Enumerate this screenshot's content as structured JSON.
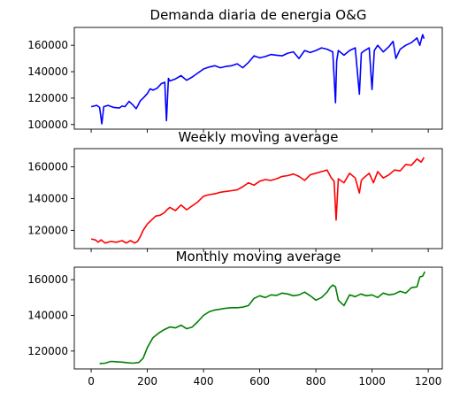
{
  "chart_data": [
    {
      "type": "line",
      "title": "Demanda diaria de energia O&G",
      "color": "#0000ff",
      "xlim": [
        -60,
        1250
      ],
      "ylim": [
        96500,
        173500
      ],
      "x_ticks": [
        0,
        200,
        400,
        600,
        800,
        1000,
        1200
      ],
      "x_tick_labels_visible": false,
      "y_ticks": [
        100000,
        120000,
        140000,
        160000
      ],
      "y_tick_labels": [
        "100000",
        "120000",
        "140000",
        "160000"
      ],
      "series": [
        {
          "x": [
            0,
            20,
            30,
            38,
            45,
            60,
            80,
            100,
            110,
            120,
            135,
            150,
            160,
            168,
            175,
            185,
            200,
            210,
            220,
            235,
            250,
            262,
            268,
            275,
            280,
            300,
            320,
            340,
            360,
            380,
            400,
            420,
            440,
            460,
            480,
            500,
            520,
            540,
            560,
            580,
            600,
            620,
            640,
            660,
            680,
            700,
            720,
            740,
            760,
            780,
            800,
            820,
            840,
            860,
            870,
            874,
            880,
            900,
            920,
            940,
            955,
            962,
            970,
            990,
            1000,
            1008,
            1020,
            1040,
            1060,
            1075,
            1085,
            1100,
            1120,
            1140,
            1160,
            1170,
            1180,
            1185
          ],
          "values": [
            113500,
            114500,
            113000,
            100500,
            113500,
            114500,
            113000,
            112500,
            114000,
            113500,
            117500,
            114500,
            112000,
            115000,
            118000,
            120000,
            123500,
            127000,
            126000,
            127500,
            131000,
            132000,
            103000,
            135000,
            133000,
            134500,
            137000,
            133500,
            136000,
            139000,
            142000,
            143500,
            144500,
            143000,
            144000,
            144500,
            146000,
            143000,
            147000,
            152000,
            150500,
            151500,
            153000,
            152500,
            152000,
            154000,
            155000,
            150000,
            156000,
            154500,
            156000,
            158000,
            157000,
            155000,
            116500,
            148000,
            156000,
            152500,
            156000,
            158000,
            123000,
            154000,
            155500,
            158000,
            126500,
            156000,
            160000,
            155000,
            159000,
            163000,
            150000,
            157000,
            160000,
            162000,
            165500,
            160000,
            168000,
            165000
          ]
        }
      ]
    },
    {
      "type": "line",
      "title": "Weekly moving average",
      "color": "#ff0000",
      "xlim": [
        -60,
        1250
      ],
      "ylim": [
        108500,
        171500
      ],
      "x_ticks": [
        0,
        200,
        400,
        600,
        800,
        1000,
        1200
      ],
      "x_tick_labels_visible": false,
      "y_ticks": [
        120000,
        140000,
        160000
      ],
      "y_tick_labels": [
        "120000",
        "140000",
        "160000"
      ],
      "series": [
        {
          "x": [
            0,
            15,
            25,
            35,
            50,
            70,
            90,
            110,
            125,
            140,
            155,
            165,
            175,
            185,
            200,
            215,
            230,
            245,
            260,
            270,
            280,
            300,
            320,
            340,
            360,
            380,
            400,
            420,
            440,
            460,
            480,
            500,
            520,
            540,
            560,
            580,
            600,
            620,
            640,
            660,
            680,
            700,
            720,
            740,
            760,
            780,
            800,
            820,
            840,
            855,
            865,
            872,
            880,
            900,
            920,
            940,
            955,
            962,
            970,
            990,
            1005,
            1020,
            1040,
            1060,
            1080,
            1100,
            1120,
            1140,
            1160,
            1175,
            1185
          ],
          "values": [
            114500,
            114000,
            112500,
            114000,
            112000,
            113000,
            112500,
            113500,
            112000,
            113500,
            112000,
            113000,
            116000,
            120000,
            124000,
            126500,
            129000,
            129500,
            131000,
            133000,
            134500,
            132500,
            136000,
            133000,
            135500,
            138000,
            141500,
            142500,
            143000,
            144000,
            144500,
            145000,
            145500,
            147500,
            150000,
            148500,
            151000,
            152000,
            151500,
            152500,
            154000,
            154500,
            155500,
            154000,
            151500,
            155000,
            156000,
            157000,
            158000,
            153000,
            151000,
            126500,
            152500,
            150000,
            156000,
            153000,
            143500,
            151500,
            153000,
            156000,
            150000,
            157000,
            153000,
            155000,
            158000,
            157500,
            161500,
            161000,
            165000,
            163000,
            166000
          ]
        }
      ]
    },
    {
      "type": "line",
      "title": "Monthly moving average",
      "color": "#008000",
      "xlim": [
        -60,
        1250
      ],
      "ylim": [
        110000,
        167000
      ],
      "x_ticks": [
        0,
        200,
        400,
        600,
        800,
        1000,
        1200
      ],
      "x_tick_labels": [
        "0",
        "200",
        "400",
        "600",
        "800",
        "1000",
        "1200"
      ],
      "y_ticks": [
        120000,
        140000,
        160000
      ],
      "y_tick_labels": [
        "120000",
        "140000",
        "160000"
      ],
      "series": [
        {
          "x": [
            30,
            50,
            70,
            90,
            110,
            130,
            150,
            170,
            185,
            200,
            220,
            240,
            260,
            280,
            300,
            320,
            340,
            360,
            380,
            400,
            420,
            440,
            460,
            480,
            500,
            520,
            540,
            560,
            580,
            600,
            620,
            640,
            660,
            680,
            700,
            720,
            740,
            760,
            780,
            800,
            820,
            840,
            850,
            860,
            870,
            880,
            890,
            900,
            920,
            940,
            960,
            980,
            1000,
            1020,
            1040,
            1060,
            1080,
            1100,
            1120,
            1140,
            1160,
            1170,
            1180,
            1188
          ],
          "values": [
            113000,
            113200,
            114200,
            114000,
            113800,
            113400,
            113200,
            113600,
            116000,
            122000,
            127500,
            130000,
            132000,
            133500,
            133000,
            134500,
            132500,
            133500,
            136500,
            140000,
            142000,
            143000,
            143500,
            144000,
            144300,
            144300,
            144600,
            145500,
            149500,
            151000,
            150000,
            151500,
            151200,
            152500,
            152000,
            151000,
            151500,
            153000,
            151000,
            148500,
            150000,
            153000,
            155500,
            157000,
            156000,
            148500,
            147000,
            145500,
            151500,
            150500,
            152000,
            151000,
            151500,
            150000,
            152500,
            151500,
            152000,
            153500,
            152500,
            155500,
            156000,
            161500,
            162000,
            164500
          ]
        }
      ]
    }
  ]
}
